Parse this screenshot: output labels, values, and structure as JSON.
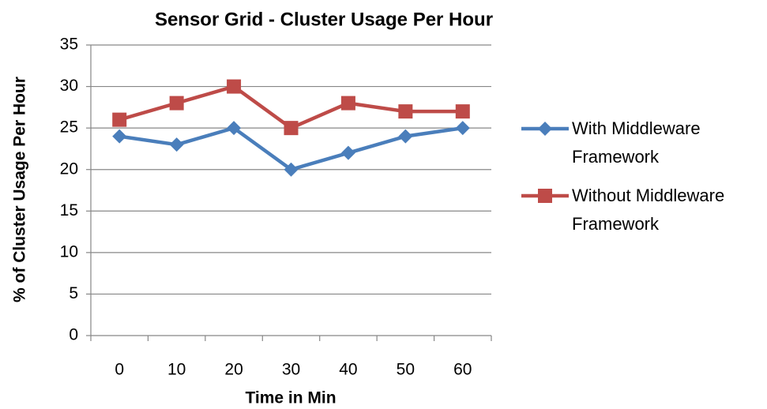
{
  "chart_data": {
    "type": "line",
    "title": "Sensor Grid - Cluster Usage Per Hour",
    "x_label": "Time in Min",
    "y_label": "% of Cluster Usage Per Hour",
    "categories": [
      "0",
      "10",
      "20",
      "30",
      "40",
      "50",
      "60"
    ],
    "series": [
      {
        "name": "With Middleware Framework",
        "color": "#4a7ebb",
        "marker": "diamond",
        "values": [
          24,
          23,
          25,
          20,
          22,
          24,
          25
        ]
      },
      {
        "name": "Without Middleware Framework",
        "color": "#be4b48",
        "marker": "square",
        "values": [
          26,
          28,
          30,
          25,
          28,
          27,
          27
        ]
      }
    ],
    "ylim": [
      0,
      35
    ],
    "yticks": [
      0,
      5,
      10,
      15,
      20,
      25,
      30,
      35
    ],
    "grid": true,
    "legend": "right"
  }
}
